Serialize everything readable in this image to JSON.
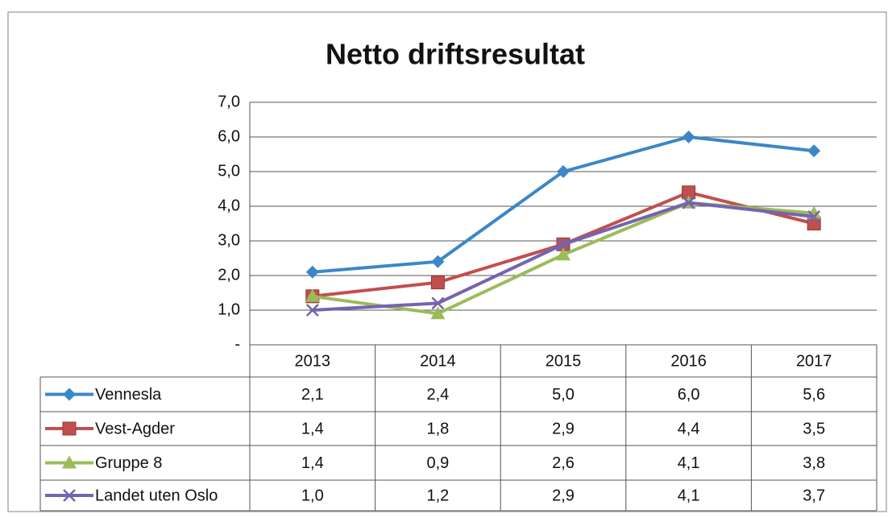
{
  "chart_data": {
    "type": "line",
    "title": "Netto driftsresultat",
    "categories": [
      "2013",
      "2014",
      "2015",
      "2016",
      "2017"
    ],
    "series": [
      {
        "name": "Vennesla",
        "color": "#3b87c9",
        "marker": "diamond",
        "values": [
          2.1,
          2.4,
          5.0,
          6.0,
          5.6
        ],
        "value_labels": [
          "2,1",
          "2,4",
          "5,0",
          "6,0",
          "5,6"
        ]
      },
      {
        "name": "Vest-Agder",
        "color": "#c0504d",
        "marker": "square",
        "values": [
          1.4,
          1.8,
          2.9,
          4.4,
          3.5
        ],
        "value_labels": [
          "1,4",
          "1,8",
          "2,9",
          "4,4",
          "3,5"
        ]
      },
      {
        "name": "Gruppe 8",
        "color": "#9bbb59",
        "marker": "triangle",
        "values": [
          1.4,
          0.9,
          2.6,
          4.1,
          3.8
        ],
        "value_labels": [
          "1,4",
          "0,9",
          "2,6",
          "4,1",
          "3,8"
        ]
      },
      {
        "name": "Landet uten Oslo",
        "color": "#7464b0",
        "marker": "x",
        "values": [
          1.0,
          1.2,
          2.9,
          4.1,
          3.7
        ],
        "value_labels": [
          "1,0",
          "1,2",
          "2,9",
          "4,1",
          "3,7"
        ]
      }
    ],
    "ylim": [
      0,
      7
    ],
    "yticks": [
      {
        "value": 0,
        "label": "-"
      },
      {
        "value": 1,
        "label": "1,0"
      },
      {
        "value": 2,
        "label": "2,0"
      },
      {
        "value": 3,
        "label": "3,0"
      },
      {
        "value": 4,
        "label": "4,0"
      },
      {
        "value": 5,
        "label": "5,0"
      },
      {
        "value": 6,
        "label": "6,0"
      },
      {
        "value": 7,
        "label": "7,0"
      }
    ],
    "grid": true,
    "legend": "table"
  }
}
